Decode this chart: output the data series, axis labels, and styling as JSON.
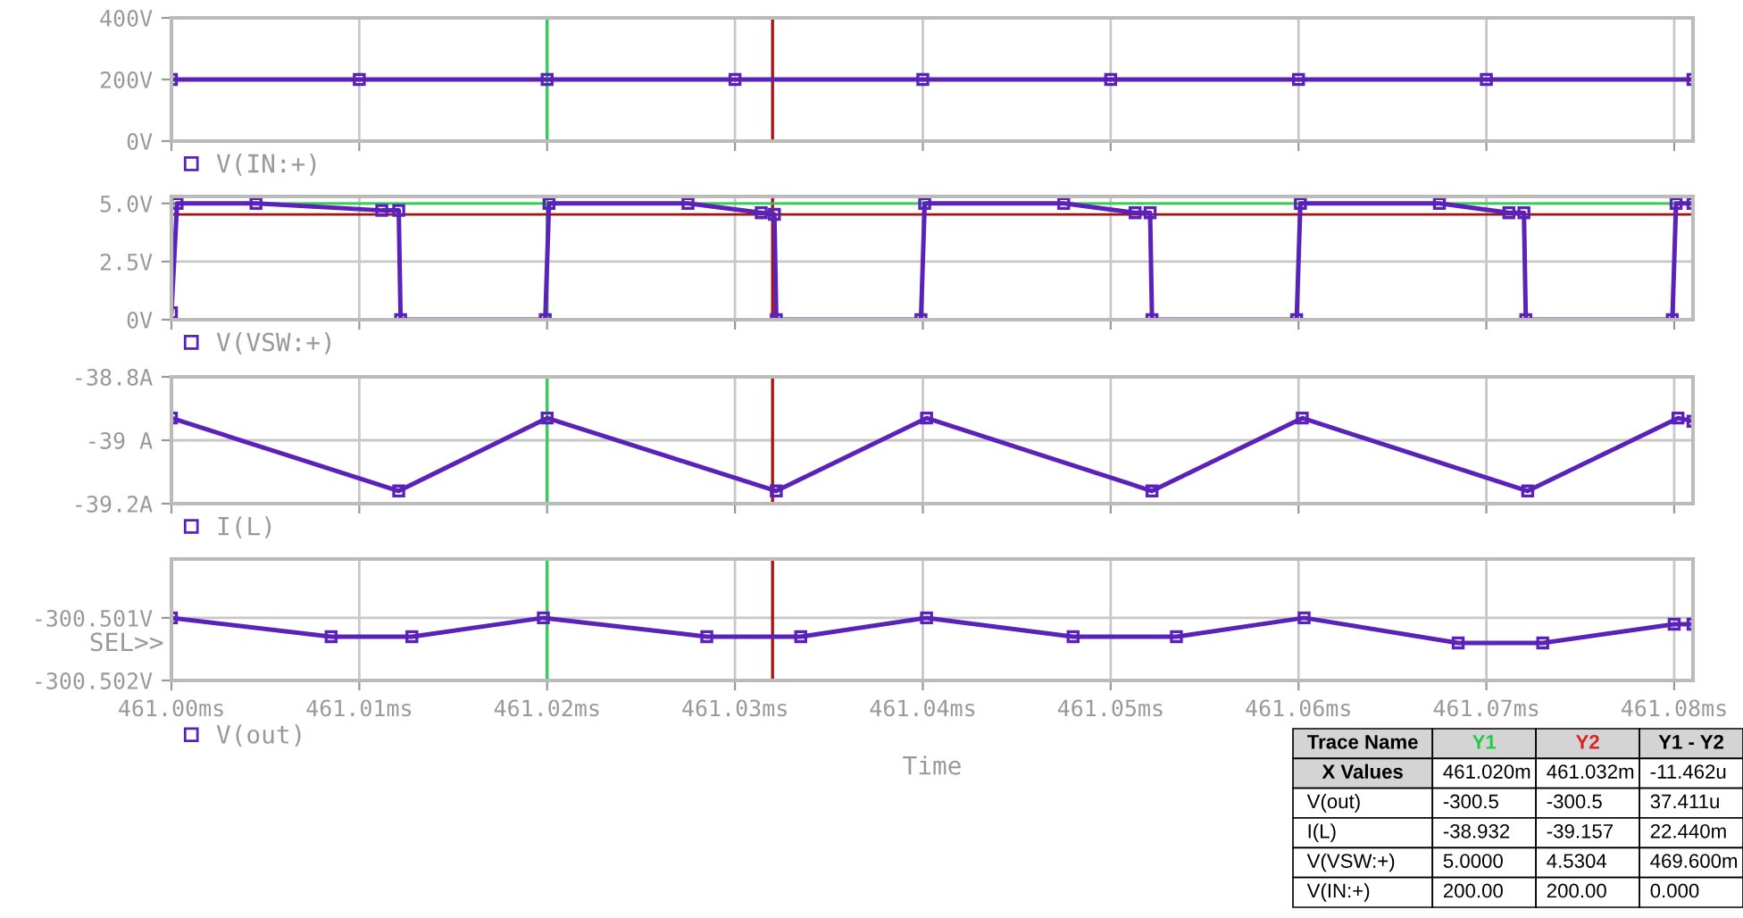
{
  "chart_data": [
    {
      "type": "line",
      "xlim": [
        461.0,
        461.081
      ],
      "xticks": [
        461.0,
        461.01,
        461.02,
        461.03,
        461.04,
        461.05,
        461.06,
        461.07,
        461.08
      ],
      "ylim": [
        0,
        400
      ],
      "yticks": [
        {
          "value": 400,
          "label": "400V"
        },
        {
          "value": 200,
          "label": "200V"
        },
        {
          "value": 0,
          "label": "0V"
        }
      ],
      "tick_labels": "y",
      "grid": true,
      "legend": "bottom left",
      "marker": "square",
      "series": [
        {
          "name": "V(IN:+)",
          "color": "#5a22b8",
          "x": [
            461.0,
            461.01,
            461.02,
            461.03,
            461.04,
            461.05,
            461.06,
            461.07,
            461.081
          ],
          "values": [
            200,
            200,
            200,
            200,
            200,
            200,
            200,
            200,
            200
          ]
        }
      ],
      "ref_lines": [
        {
          "axis": "x",
          "value": 461.02,
          "color": "#33cc55"
        },
        {
          "axis": "x",
          "value": 461.032,
          "color": "#aa1111"
        }
      ]
    },
    {
      "type": "line",
      "xlim": [
        461.0,
        461.081
      ],
      "xticks": [
        461.0,
        461.01,
        461.02,
        461.03,
        461.04,
        461.05,
        461.06,
        461.07,
        461.08
      ],
      "ylim": [
        0,
        5.3
      ],
      "yticks": [
        {
          "value": 5.0,
          "label": "5.0V"
        },
        {
          "value": 2.5,
          "label": "2.5V"
        },
        {
          "value": 0,
          "label": "0V"
        }
      ],
      "tick_labels": "y",
      "grid": true,
      "legend": "bottom left",
      "marker": "square",
      "series": [
        {
          "name": "V(VSW:+)",
          "color": "#5a22b8",
          "x": [
            461.0,
            461.0003,
            461.0045,
            461.0112,
            461.0121,
            461.0122,
            461.0199,
            461.0201,
            461.0275,
            461.0314,
            461.0321,
            461.0322,
            461.0399,
            461.0401,
            461.0475,
            461.0513,
            461.0521,
            461.0522,
            461.0599,
            461.0601,
            461.0675,
            461.0712,
            461.072,
            461.0721,
            461.0799,
            461.0801,
            461.081
          ],
          "values": [
            0.3,
            5.0,
            5.0,
            4.7,
            4.7,
            0,
            0,
            5.0,
            5.0,
            4.6,
            4.53,
            0,
            0,
            5.0,
            5.0,
            4.6,
            4.6,
            0,
            0,
            5.0,
            5.0,
            4.6,
            4.6,
            0,
            0,
            5.0,
            5.0
          ]
        }
      ],
      "ref_lines": [
        {
          "axis": "x",
          "value": 461.02,
          "color": "#33cc55"
        },
        {
          "axis": "x",
          "value": 461.032,
          "color": "#aa1111"
        },
        {
          "axis": "y",
          "value": 5.0,
          "color": "#33cc55"
        },
        {
          "axis": "y",
          "value": 4.5304,
          "color": "#aa1111"
        }
      ]
    },
    {
      "type": "line",
      "xlim": [
        461.0,
        461.081
      ],
      "xticks": [
        461.0,
        461.01,
        461.02,
        461.03,
        461.04,
        461.05,
        461.06,
        461.07,
        461.08
      ],
      "ylim": [
        -39.2,
        -38.8
      ],
      "yticks": [
        {
          "value": -38.8,
          "label": "-38.8A"
        },
        {
          "value": -39.0,
          "label": "-39 A"
        },
        {
          "value": -39.2,
          "label": "-39.2A"
        }
      ],
      "tick_labels": "y",
      "grid": true,
      "legend": "bottom left",
      "marker": "square",
      "series": [
        {
          "name": "I(L)",
          "color": "#5a22b8",
          "x": [
            461.0,
            461.0121,
            461.02,
            461.0322,
            461.0402,
            461.0522,
            461.0602,
            461.0722,
            461.0802,
            461.081
          ],
          "values": [
            -38.93,
            -39.16,
            -38.93,
            -39.16,
            -38.93,
            -39.16,
            -38.93,
            -39.16,
            -38.93,
            -38.94
          ]
        }
      ],
      "ref_lines": [
        {
          "axis": "x",
          "value": 461.02,
          "color": "#33cc55"
        },
        {
          "axis": "x",
          "value": 461.032,
          "color": "#aa1111"
        }
      ]
    },
    {
      "type": "line",
      "xlim": [
        461.0,
        461.081
      ],
      "xticks": [
        {
          "value": 461.0,
          "label": "461.00ms"
        },
        {
          "value": 461.01,
          "label": "461.01ms"
        },
        {
          "value": 461.02,
          "label": "461.02ms"
        },
        {
          "value": 461.03,
          "label": "461.03ms"
        },
        {
          "value": 461.04,
          "label": "461.04ms"
        },
        {
          "value": 461.05,
          "label": "461.05ms"
        },
        {
          "value": 461.06,
          "label": "461.06ms"
        },
        {
          "value": 461.07,
          "label": "461.07ms"
        },
        {
          "value": 461.08,
          "label": "461.08ms"
        }
      ],
      "ylim": [
        -300.502,
        -300.50006
      ],
      "yticks": [
        {
          "value": -300.501,
          "label": "-300.501V"
        },
        {
          "value": -300.502,
          "label": "-300.502V"
        }
      ],
      "xlabel": "Time",
      "grid": true,
      "legend": "bottom left",
      "marker": "square",
      "annotations": [
        "SEL>>"
      ],
      "series": [
        {
          "name": "V(out)",
          "color": "#5a22b8",
          "x": [
            461.0,
            461.0085,
            461.0128,
            461.0198,
            461.0285,
            461.0335,
            461.0402,
            461.048,
            461.0535,
            461.0603,
            461.0685,
            461.073,
            461.08,
            461.081
          ],
          "values": [
            -300.501,
            -300.5013,
            -300.5013,
            -300.501,
            -300.5013,
            -300.5013,
            -300.501,
            -300.5013,
            -300.5013,
            -300.501,
            -300.5014,
            -300.5014,
            -300.5011,
            -300.5011
          ]
        }
      ],
      "ref_lines": [
        {
          "axis": "x",
          "value": 461.02,
          "color": "#33cc55"
        },
        {
          "axis": "x",
          "value": 461.032,
          "color": "#aa1111"
        }
      ]
    },
    {
      "type": "other",
      "annotations": [
        "Trace Name",
        "Y1",
        "Y2",
        "Y1 - Y2",
        "X Values",
        "461.020m",
        "461.032m",
        "-11.462u",
        "V(out)",
        "-300.5",
        "-300.5",
        "37.411u",
        "I(L)",
        "-38.932",
        "-39.157",
        "22.440m",
        "V(VSW:+)",
        "5.0000",
        "4.5304",
        "469.600m",
        "V(IN:+)",
        "200.00",
        "200.00",
        "0.000"
      ]
    }
  ]
}
